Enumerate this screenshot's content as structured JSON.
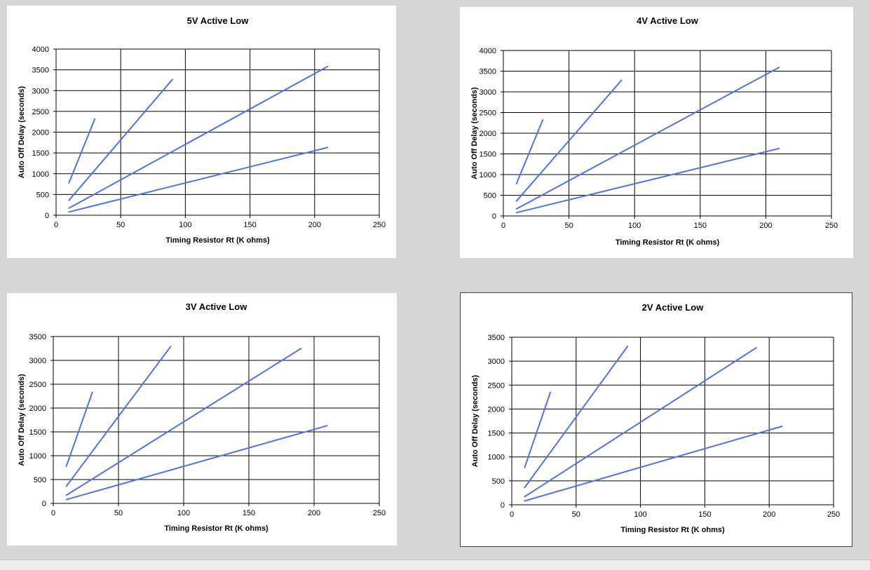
{
  "colors": {
    "background": "#d6d6d6",
    "series_line": "#4f72e8",
    "panel": "#ffffff",
    "grid": "#000000"
  },
  "chart_data": [
    {
      "type": "line",
      "title": "5V Active Low",
      "xlabel": "Timing Resistor  Rt (K ohms)",
      "ylabel": "Auto Off Delay (seconds)",
      "xlim": [
        0,
        250
      ],
      "ylim": [
        0,
        4000
      ],
      "xticks": [
        0,
        50,
        100,
        150,
        200,
        250
      ],
      "yticks": [
        0,
        500,
        1000,
        1500,
        2000,
        2500,
        3000,
        3500,
        4000
      ],
      "grid": true,
      "series": [
        {
          "x": [
            10,
            30
          ],
          "y": [
            780,
            2320
          ]
        },
        {
          "x": [
            10,
            90
          ],
          "y": [
            360,
            3270
          ]
        },
        {
          "x": [
            10,
            210
          ],
          "y": [
            170,
            3580
          ]
        },
        {
          "x": [
            10,
            210
          ],
          "y": [
            80,
            1630
          ]
        }
      ]
    },
    {
      "type": "line",
      "title": "4V Active Low",
      "xlabel": "Timing Resistor  Rt (K ohms)",
      "ylabel": "Auto Off Delay (seconds)",
      "xlim": [
        0,
        250
      ],
      "ylim": [
        0,
        4000
      ],
      "xticks": [
        0,
        50,
        100,
        150,
        200,
        250
      ],
      "yticks": [
        0,
        500,
        1000,
        1500,
        2000,
        2500,
        3000,
        3500,
        4000
      ],
      "grid": true,
      "series": [
        {
          "x": [
            10,
            30
          ],
          "y": [
            780,
            2320
          ]
        },
        {
          "x": [
            10,
            90
          ],
          "y": [
            360,
            3280
          ]
        },
        {
          "x": [
            10,
            210
          ],
          "y": [
            170,
            3590
          ]
        },
        {
          "x": [
            10,
            210
          ],
          "y": [
            80,
            1630
          ]
        }
      ]
    },
    {
      "type": "line",
      "title": "3V Active Low",
      "xlabel": "Timing Resistor  Rt (K ohms)",
      "ylabel": "Auto Off Delay (seconds)",
      "xlim": [
        0,
        250
      ],
      "ylim": [
        0,
        3500
      ],
      "xticks": [
        0,
        50,
        100,
        150,
        200,
        250
      ],
      "yticks": [
        0,
        500,
        1000,
        1500,
        2000,
        2500,
        3000,
        3500
      ],
      "grid": true,
      "series": [
        {
          "x": [
            10,
            30
          ],
          "y": [
            780,
            2330
          ]
        },
        {
          "x": [
            10,
            90
          ],
          "y": [
            360,
            3290
          ]
        },
        {
          "x": [
            10,
            190
          ],
          "y": [
            170,
            3250
          ]
        },
        {
          "x": [
            10,
            210
          ],
          "y": [
            80,
            1630
          ]
        }
      ]
    },
    {
      "type": "line",
      "title": "2V Active Low",
      "xlabel": "Timing Resistor  Rt (K ohms)",
      "ylabel": "Auto Off Delay (seconds)",
      "xlim": [
        0,
        250
      ],
      "ylim": [
        0,
        3500
      ],
      "xticks": [
        0,
        50,
        100,
        150,
        200,
        250
      ],
      "yticks": [
        0,
        500,
        1000,
        1500,
        2000,
        2500,
        3000,
        3500
      ],
      "grid": true,
      "series": [
        {
          "x": [
            10,
            30
          ],
          "y": [
            780,
            2350
          ]
        },
        {
          "x": [
            10,
            90
          ],
          "y": [
            360,
            3310
          ]
        },
        {
          "x": [
            10,
            190
          ],
          "y": [
            170,
            3280
          ]
        },
        {
          "x": [
            10,
            210
          ],
          "y": [
            80,
            1640
          ]
        }
      ]
    }
  ]
}
